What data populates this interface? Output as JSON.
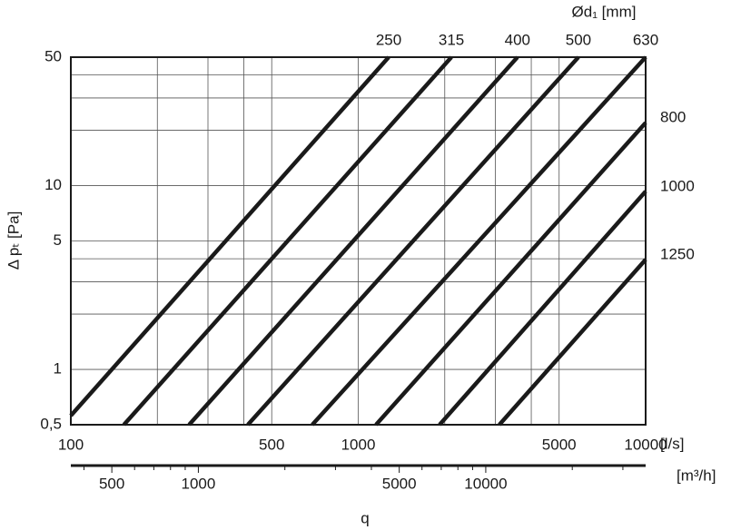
{
  "chart_data": {
    "type": "line",
    "log_x": true,
    "log_y": true,
    "grid": true,
    "x_label": "[l/s]",
    "x2_label": "[m³/h]",
    "bottom_label": "q",
    "y_label": "Δ pₜ [Pa]",
    "series_title": "Ød₁ [mm]",
    "xlim": [
      100,
      10000
    ],
    "xticks": [
      100,
      500,
      1000,
      5000,
      10000
    ],
    "xminor": [
      200,
      300,
      400,
      2000,
      3000,
      4000
    ],
    "ylim": [
      0.5,
      50
    ],
    "yticks": [
      {
        "value": 0.5,
        "label": "0,5"
      },
      1,
      5,
      10,
      50
    ],
    "yminor": [
      2,
      3,
      4,
      20,
      30,
      40
    ],
    "x2lim": [
      360,
      36000
    ],
    "x2ticks": [
      500,
      1000,
      5000,
      10000
    ],
    "x2minor": [
      400,
      600,
      700,
      800,
      900,
      2000,
      3000,
      4000,
      6000,
      7000,
      8000,
      9000,
      20000,
      30000
    ],
    "series": [
      {
        "name": "250",
        "color": "#1a1a1a",
        "x": [
          100,
          1276
        ],
        "values": [
          0.56,
          50
        ]
      },
      {
        "name": "315",
        "color": "#1a1a1a",
        "x": [
          153,
          2109
        ],
        "values": [
          0.5,
          50
        ]
      },
      {
        "name": "400",
        "color": "#1a1a1a",
        "x": [
          258,
          3580
        ],
        "values": [
          0.5,
          50
        ]
      },
      {
        "name": "500",
        "color": "#1a1a1a",
        "x": [
          413,
          5834
        ],
        "values": [
          0.5,
          50
        ]
      },
      {
        "name": "630",
        "color": "#1a1a1a",
        "x": [
          692,
          10000
        ],
        "values": [
          0.5,
          50
        ]
      },
      {
        "name": "800",
        "color": "#1a1a1a",
        "x": [
          1153,
          10000
        ],
        "values": [
          0.5,
          22
        ]
      },
      {
        "name": "1000",
        "color": "#1a1a1a",
        "x": [
          1919,
          10000
        ],
        "values": [
          0.5,
          9.3
        ]
      },
      {
        "name": "1250",
        "color": "#1a1a1a",
        "x": [
          3097,
          10000
        ],
        "values": [
          0.5,
          3.96
        ]
      }
    ]
  }
}
